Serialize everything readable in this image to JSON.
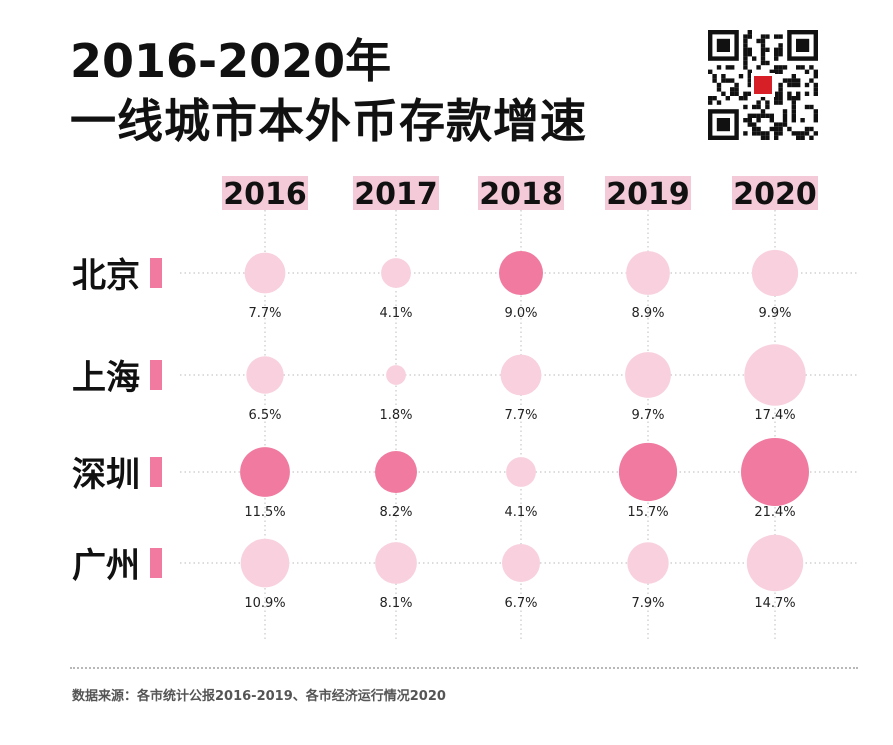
{
  "title": {
    "line1": "2016-2020年",
    "line2": "一线城市本外币存款增速"
  },
  "source_note": "数据来源：各市统计公报2016-2019、各市经济运行情况2020",
  "colors": {
    "header_bg": "#f4c9d8",
    "marker": "#f07aa0",
    "bubble_light": "#f8d0de",
    "bubble_dark": "#f07aa0",
    "grid": "#c8c8c8",
    "qr_red": "#d61f26"
  },
  "chart_data": {
    "type": "bubble",
    "title": "2016-2020年 一线城市本外币存款增速",
    "x": [
      "2016",
      "2017",
      "2018",
      "2019",
      "2020"
    ],
    "y": [
      "北京",
      "上海",
      "深圳",
      "广州"
    ],
    "unit": "%",
    "highlight_note": "darker bubbles mark the highest-growth city for the year",
    "series": [
      {
        "name": "北京",
        "values": [
          7.7,
          4.1,
          9.0,
          8.9,
          9.9
        ],
        "labels": [
          "7.7%",
          "4.1%",
          "9.0%",
          "8.9%",
          "9.9%"
        ],
        "highlight": [
          false,
          false,
          true,
          false,
          false
        ]
      },
      {
        "name": "上海",
        "values": [
          6.5,
          1.8,
          7.7,
          9.7,
          17.4
        ],
        "labels": [
          "6.5%",
          "1.8%",
          "7.7%",
          "9.7%",
          "17.4%"
        ],
        "highlight": [
          false,
          false,
          false,
          false,
          false
        ]
      },
      {
        "name": "深圳",
        "values": [
          11.5,
          8.2,
          4.1,
          15.7,
          21.4
        ],
        "labels": [
          "11.5%",
          "8.2%",
          "4.1%",
          "15.7%",
          "21.4%"
        ],
        "highlight": [
          true,
          true,
          false,
          true,
          true
        ]
      },
      {
        "name": "广州",
        "values": [
          10.9,
          8.1,
          6.7,
          7.9,
          14.7
        ],
        "labels": [
          "10.9%",
          "8.1%",
          "6.7%",
          "7.9%",
          "14.7%"
        ],
        "highlight": [
          false,
          false,
          false,
          false,
          false
        ]
      }
    ]
  }
}
